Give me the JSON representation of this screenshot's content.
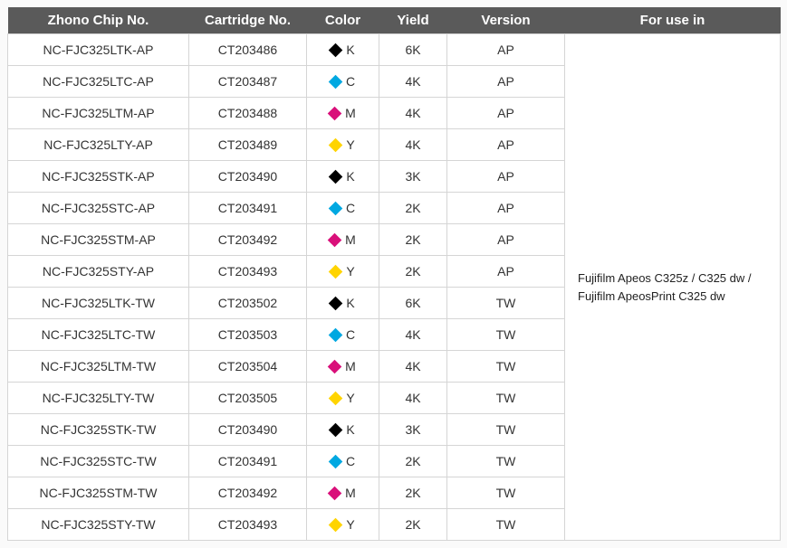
{
  "headers": {
    "chip": "Zhono Chip No.",
    "cart": "Cartridge No.",
    "color": "Color",
    "yield": "Yield",
    "version": "Version",
    "use": "For use in"
  },
  "for_use_in": "Fujifilm Apeos C325z / C325 dw / Fujifilm ApeosPrint C325 dw",
  "color_swatches": {
    "K": "#000000",
    "C": "#00a8e1",
    "M": "#d9107a",
    "Y": "#ffd400"
  },
  "rows": [
    {
      "chip": "NC-FJC325LTK-AP",
      "cart": "CT203486",
      "color": "K",
      "yield": "6K",
      "version": "AP"
    },
    {
      "chip": "NC-FJC325LTC-AP",
      "cart": "CT203487",
      "color": "C",
      "yield": "4K",
      "version": "AP"
    },
    {
      "chip": "NC-FJC325LTM-AP",
      "cart": "CT203488",
      "color": "M",
      "yield": "4K",
      "version": "AP"
    },
    {
      "chip": "NC-FJC325LTY-AP",
      "cart": "CT203489",
      "color": "Y",
      "yield": "4K",
      "version": "AP"
    },
    {
      "chip": "NC-FJC325STK-AP",
      "cart": "CT203490",
      "color": "K",
      "yield": "3K",
      "version": "AP"
    },
    {
      "chip": "NC-FJC325STC-AP",
      "cart": "CT203491",
      "color": "C",
      "yield": "2K",
      "version": "AP"
    },
    {
      "chip": "NC-FJC325STM-AP",
      "cart": "CT203492",
      "color": "M",
      "yield": "2K",
      "version": "AP"
    },
    {
      "chip": "NC-FJC325STY-AP",
      "cart": "CT203493",
      "color": "Y",
      "yield": "2K",
      "version": "AP"
    },
    {
      "chip": "NC-FJC325LTK-TW",
      "cart": "CT203502",
      "color": "K",
      "yield": "6K",
      "version": "TW"
    },
    {
      "chip": "NC-FJC325LTC-TW",
      "cart": "CT203503",
      "color": "C",
      "yield": "4K",
      "version": "TW"
    },
    {
      "chip": "NC-FJC325LTM-TW",
      "cart": "CT203504",
      "color": "M",
      "yield": "4K",
      "version": "TW"
    },
    {
      "chip": "NC-FJC325LTY-TW",
      "cart": "CT203505",
      "color": "Y",
      "yield": "4K",
      "version": "TW"
    },
    {
      "chip": "NC-FJC325STK-TW",
      "cart": "CT203490",
      "color": "K",
      "yield": "3K",
      "version": "TW"
    },
    {
      "chip": "NC-FJC325STC-TW",
      "cart": "CT203491",
      "color": "C",
      "yield": "2K",
      "version": "TW"
    },
    {
      "chip": "NC-FJC325STM-TW",
      "cart": "CT203492",
      "color": "M",
      "yield": "2K",
      "version": "TW"
    },
    {
      "chip": "NC-FJC325STY-TW",
      "cart": "CT203493",
      "color": "Y",
      "yield": "2K",
      "version": "TW"
    }
  ]
}
